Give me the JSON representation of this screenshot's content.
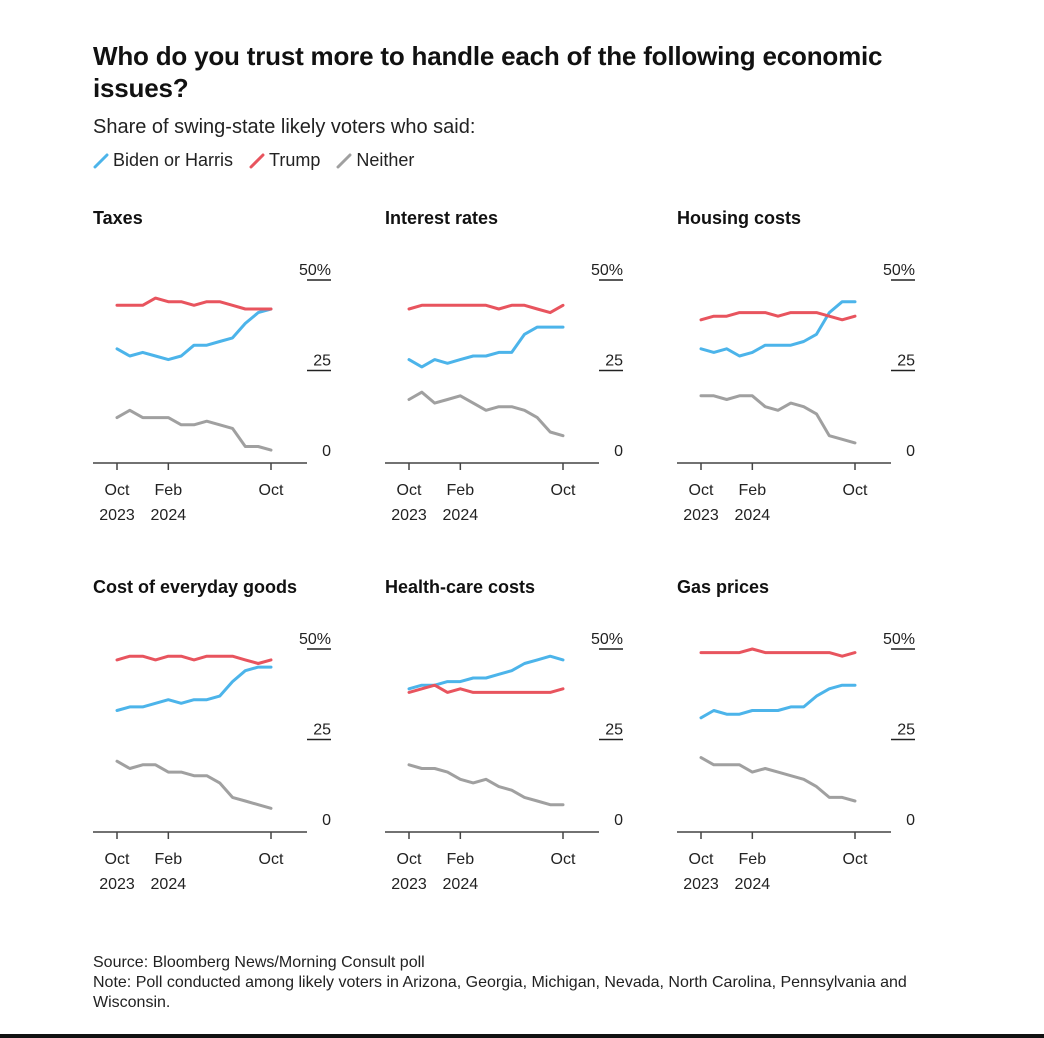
{
  "title": "Who do you trust more to handle each of the following economic issues?",
  "subtitle": "Share of swing-state likely voters who said:",
  "legend": [
    {
      "label": "Biden or Harris",
      "color": "#4cb4ea"
    },
    {
      "label": "Trump",
      "color": "#e8545e"
    },
    {
      "label": "Neither",
      "color": "#a0a0a0"
    }
  ],
  "footer": {
    "source": "Source: Bloomberg News/Morning Consult poll",
    "note": "Note: Poll conducted among likely voters in Arizona, Georgia, Michigan, Nevada, North Carolina, Pennsylvania and Wisconsin."
  },
  "chart_data": [
    {
      "type": "line",
      "title": "Taxes",
      "x": [
        "Oct 2023",
        "Nov 2023",
        "Dec 2023",
        "Jan 2024",
        "Feb 2024",
        "Mar 2024",
        "Apr 2024",
        "May 2024",
        "Jun 2024",
        "Jul 2024",
        "Aug 2024",
        "Sep 2024",
        "Oct 2024"
      ],
      "xticks": [
        {
          "x": 0,
          "line1": "Oct",
          "line2": "2023"
        },
        {
          "x": 4,
          "line1": "Feb",
          "line2": "2024"
        },
        {
          "x": 12,
          "line1": "Oct",
          "line2": ""
        }
      ],
      "ylim": [
        0,
        50
      ],
      "yticks": [
        {
          "value": 50,
          "label": "50%"
        },
        {
          "value": 25,
          "label": "25"
        },
        {
          "value": 0,
          "label": "0"
        }
      ],
      "series": [
        {
          "name": "Biden or Harris",
          "color": "#4cb4ea",
          "values": [
            31,
            29,
            30,
            29,
            28,
            29,
            32,
            32,
            33,
            34,
            38,
            41,
            42
          ]
        },
        {
          "name": "Trump",
          "color": "#e8545e",
          "values": [
            43,
            43,
            43,
            45,
            44,
            44,
            43,
            44,
            44,
            43,
            42,
            42,
            42
          ]
        },
        {
          "name": "Neither",
          "color": "#a0a0a0",
          "values": [
            12,
            14,
            12,
            12,
            12,
            10,
            10,
            11,
            10,
            9,
            4,
            4,
            3
          ]
        }
      ]
    },
    {
      "type": "line",
      "title": "Interest rates",
      "x": [
        "Oct 2023",
        "Nov 2023",
        "Dec 2023",
        "Jan 2024",
        "Feb 2024",
        "Mar 2024",
        "Apr 2024",
        "May 2024",
        "Jun 2024",
        "Jul 2024",
        "Aug 2024",
        "Sep 2024",
        "Oct 2024"
      ],
      "xticks": [
        {
          "x": 0,
          "line1": "Oct",
          "line2": "2023"
        },
        {
          "x": 4,
          "line1": "Feb",
          "line2": "2024"
        },
        {
          "x": 12,
          "line1": "Oct",
          "line2": ""
        }
      ],
      "ylim": [
        0,
        50
      ],
      "yticks": [
        {
          "value": 50,
          "label": "50%"
        },
        {
          "value": 25,
          "label": "25"
        },
        {
          "value": 0,
          "label": "0"
        }
      ],
      "series": [
        {
          "name": "Biden or Harris",
          "color": "#4cb4ea",
          "values": [
            28,
            26,
            28,
            27,
            28,
            29,
            29,
            30,
            30,
            35,
            37,
            37,
            37
          ]
        },
        {
          "name": "Trump",
          "color": "#e8545e",
          "values": [
            42,
            43,
            43,
            43,
            43,
            43,
            43,
            42,
            43,
            43,
            42,
            41,
            43
          ]
        },
        {
          "name": "Neither",
          "color": "#a0a0a0",
          "values": [
            17,
            19,
            16,
            17,
            18,
            16,
            14,
            15,
            15,
            14,
            12,
            8,
            7
          ]
        }
      ]
    },
    {
      "type": "line",
      "title": "Housing costs",
      "x": [
        "Oct 2023",
        "Nov 2023",
        "Dec 2023",
        "Jan 2024",
        "Feb 2024",
        "Mar 2024",
        "Apr 2024",
        "May 2024",
        "Jun 2024",
        "Jul 2024",
        "Aug 2024",
        "Sep 2024",
        "Oct 2024"
      ],
      "xticks": [
        {
          "x": 0,
          "line1": "Oct",
          "line2": "2023"
        },
        {
          "x": 4,
          "line1": "Feb",
          "line2": "2024"
        },
        {
          "x": 12,
          "line1": "Oct",
          "line2": ""
        }
      ],
      "ylim": [
        0,
        50
      ],
      "yticks": [
        {
          "value": 50,
          "label": "50%"
        },
        {
          "value": 25,
          "label": "25"
        },
        {
          "value": 0,
          "label": "0"
        }
      ],
      "series": [
        {
          "name": "Biden or Harris",
          "color": "#4cb4ea",
          "values": [
            31,
            30,
            31,
            29,
            30,
            32,
            32,
            32,
            33,
            35,
            41,
            44,
            44
          ]
        },
        {
          "name": "Trump",
          "color": "#e8545e",
          "values": [
            39,
            40,
            40,
            41,
            41,
            41,
            40,
            41,
            41,
            41,
            40,
            39,
            40
          ]
        },
        {
          "name": "Neither",
          "color": "#a0a0a0",
          "values": [
            18,
            18,
            17,
            18,
            18,
            15,
            14,
            16,
            15,
            13,
            7,
            6,
            5
          ]
        }
      ]
    },
    {
      "type": "line",
      "title": "Cost of everyday goods",
      "x": [
        "Oct 2023",
        "Nov 2023",
        "Dec 2023",
        "Jan 2024",
        "Feb 2024",
        "Mar 2024",
        "Apr 2024",
        "May 2024",
        "Jun 2024",
        "Jul 2024",
        "Aug 2024",
        "Sep 2024",
        "Oct 2024"
      ],
      "xticks": [
        {
          "x": 0,
          "line1": "Oct",
          "line2": "2023"
        },
        {
          "x": 4,
          "line1": "Feb",
          "line2": "2024"
        },
        {
          "x": 12,
          "line1": "Oct",
          "line2": ""
        }
      ],
      "ylim": [
        0,
        50
      ],
      "yticks": [
        {
          "value": 50,
          "label": "50%"
        },
        {
          "value": 25,
          "label": "25"
        },
        {
          "value": 0,
          "label": "0"
        }
      ],
      "series": [
        {
          "name": "Biden or Harris",
          "color": "#4cb4ea",
          "values": [
            33,
            34,
            34,
            35,
            36,
            35,
            36,
            36,
            37,
            41,
            44,
            45,
            45
          ]
        },
        {
          "name": "Trump",
          "color": "#e8545e",
          "values": [
            47,
            48,
            48,
            47,
            48,
            48,
            47,
            48,
            48,
            48,
            47,
            46,
            47
          ]
        },
        {
          "name": "Neither",
          "color": "#a0a0a0",
          "values": [
            19,
            17,
            18,
            18,
            16,
            16,
            15,
            15,
            13,
            9,
            8,
            7,
            6
          ]
        }
      ]
    },
    {
      "type": "line",
      "title": "Health-care costs",
      "x": [
        "Oct 2023",
        "Nov 2023",
        "Dec 2023",
        "Jan 2024",
        "Feb 2024",
        "Mar 2024",
        "Apr 2024",
        "May 2024",
        "Jun 2024",
        "Jul 2024",
        "Aug 2024",
        "Sep 2024",
        "Oct 2024"
      ],
      "xticks": [
        {
          "x": 0,
          "line1": "Oct",
          "line2": "2023"
        },
        {
          "x": 4,
          "line1": "Feb",
          "line2": "2024"
        },
        {
          "x": 12,
          "line1": "Oct",
          "line2": ""
        }
      ],
      "ylim": [
        0,
        50
      ],
      "yticks": [
        {
          "value": 50,
          "label": "50%"
        },
        {
          "value": 25,
          "label": "25"
        },
        {
          "value": 0,
          "label": "0"
        }
      ],
      "series": [
        {
          "name": "Biden or Harris",
          "color": "#4cb4ea",
          "values": [
            39,
            40,
            40,
            41,
            41,
            42,
            42,
            43,
            44,
            46,
            47,
            48,
            47
          ]
        },
        {
          "name": "Trump",
          "color": "#e8545e",
          "values": [
            38,
            39,
            40,
            38,
            39,
            38,
            38,
            38,
            38,
            38,
            38,
            38,
            39
          ]
        },
        {
          "name": "Neither",
          "color": "#a0a0a0",
          "values": [
            18,
            17,
            17,
            16,
            14,
            13,
            14,
            12,
            11,
            9,
            8,
            7,
            7
          ]
        }
      ]
    },
    {
      "type": "line",
      "title": "Gas prices",
      "x": [
        "Oct 2023",
        "Nov 2023",
        "Dec 2023",
        "Jan 2024",
        "Feb 2024",
        "Mar 2024",
        "Apr 2024",
        "May 2024",
        "Jun 2024",
        "Jul 2024",
        "Aug 2024",
        "Sep 2024",
        "Oct 2024"
      ],
      "xticks": [
        {
          "x": 0,
          "line1": "Oct",
          "line2": "2023"
        },
        {
          "x": 4,
          "line1": "Feb",
          "line2": "2024"
        },
        {
          "x": 12,
          "line1": "Oct",
          "line2": ""
        }
      ],
      "ylim": [
        0,
        50
      ],
      "yticks": [
        {
          "value": 50,
          "label": "50%"
        },
        {
          "value": 25,
          "label": "25"
        },
        {
          "value": 0,
          "label": "0"
        }
      ],
      "series": [
        {
          "name": "Biden or Harris",
          "color": "#4cb4ea",
          "values": [
            31,
            33,
            32,
            32,
            33,
            33,
            33,
            34,
            34,
            37,
            39,
            40,
            40
          ]
        },
        {
          "name": "Trump",
          "color": "#e8545e",
          "values": [
            49,
            49,
            49,
            49,
            50,
            49,
            49,
            49,
            49,
            49,
            49,
            48,
            49
          ]
        },
        {
          "name": "Neither",
          "color": "#a0a0a0",
          "values": [
            20,
            18,
            18,
            18,
            16,
            17,
            16,
            15,
            14,
            12,
            9,
            9,
            8
          ]
        }
      ]
    }
  ]
}
